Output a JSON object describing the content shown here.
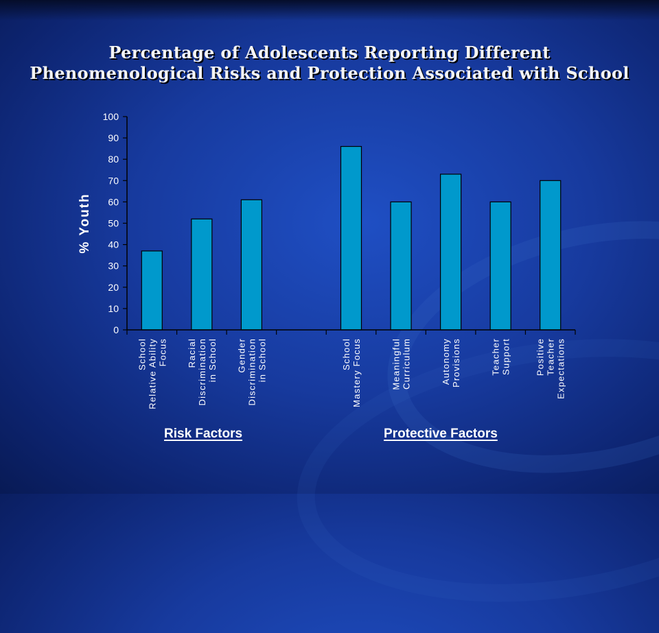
{
  "chart_data": {
    "type": "bar",
    "title": "Percentage of Adolescents Reporting Different Phenomenological Risks and Protection Associated with School",
    "ylabel": "% Youth",
    "xlabel": "",
    "ylim": [
      0,
      100
    ],
    "yticks": [
      0,
      10,
      20,
      30,
      40,
      50,
      60,
      70,
      80,
      90,
      100
    ],
    "categories": [
      [
        "School",
        "Relative Ability",
        "Focus"
      ],
      [
        "Racial",
        "Discrimination",
        "in School"
      ],
      [
        "Gender",
        "Discrimination",
        "in School"
      ],
      [],
      [
        "School",
        "Mastery Focus"
      ],
      [
        "Meaningful",
        "Curriculum"
      ],
      [
        "Autonomy",
        "Provisions"
      ],
      [
        "Teacher",
        "Support"
      ],
      [
        "Positive",
        "Teacher",
        "Expectations"
      ]
    ],
    "values": [
      37,
      52,
      61,
      null,
      86,
      60,
      73,
      60,
      70
    ],
    "bar_color": "#0099cc",
    "grid": false,
    "groups": [
      {
        "label": "Risk Factors"
      },
      {
        "label": "Protective Factors"
      }
    ]
  }
}
